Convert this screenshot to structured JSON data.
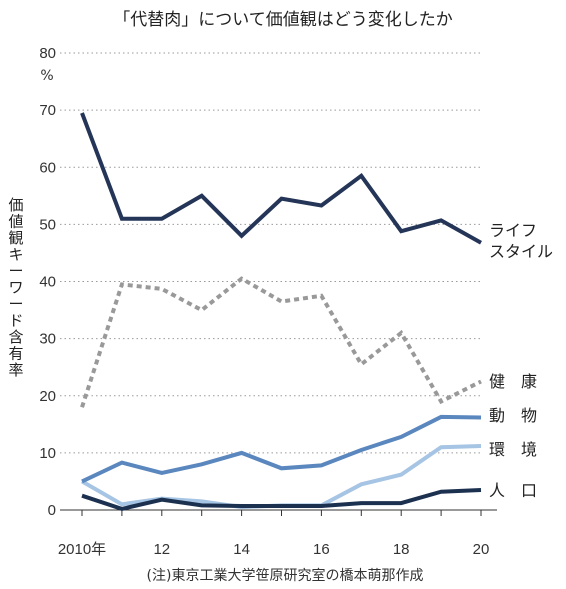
{
  "title": "「代替肉」について価値観はどう変化したか",
  "y_unit": "%",
  "ylabel": "価値観キーワード含有率",
  "source_note": "(注)東京工業大学笹原研究室の橋本萌那作成",
  "colors": {
    "lifestyle": "#243558",
    "health": "#999999",
    "animal": "#5b87bf",
    "environment": "#a6c4e3",
    "population": "#1c3150",
    "grid": "#9a9a9a",
    "axis": "#333333"
  },
  "chart_data": {
    "type": "line",
    "title": "「代替肉」について価値観はどう変化したか",
    "ylabel": "価値観キーワード含有率",
    "y_unit": "%",
    "x": [
      2010,
      2011,
      2012,
      2013,
      2014,
      2015,
      2016,
      2017,
      2018,
      2019,
      2020
    ],
    "x_ticks": [
      2010,
      2012,
      2014,
      2016,
      2018,
      2020
    ],
    "x_tick_labels": [
      "2010年",
      "12",
      "14",
      "16",
      "18",
      "20"
    ],
    "y_ticks": [
      0,
      10,
      20,
      30,
      40,
      50,
      60,
      70,
      80
    ],
    "xlim": [
      2010,
      2020
    ],
    "ylim": [
      0,
      80
    ],
    "grid": true,
    "series": [
      {
        "name_lines": [
          "ライフ",
          "スタイル"
        ],
        "style": "solid",
        "color": "#243558",
        "values": [
          69.5,
          51.0,
          51.0,
          55.0,
          48.0,
          54.5,
          53.3,
          58.5,
          48.8,
          50.7,
          46.8
        ]
      },
      {
        "name_lines": [
          "健　康"
        ],
        "style": "dashed",
        "color": "#999999",
        "values": [
          18.0,
          39.5,
          38.7,
          35.0,
          40.5,
          36.5,
          37.5,
          25.5,
          31.0,
          19.0,
          22.5
        ]
      },
      {
        "name_lines": [
          "動　物"
        ],
        "style": "solid",
        "color": "#5b87bf",
        "values": [
          5.0,
          8.3,
          6.5,
          8.0,
          10.0,
          7.3,
          7.8,
          10.5,
          12.8,
          16.3,
          16.2
        ]
      },
      {
        "name_lines": [
          "環　境"
        ],
        "style": "solid",
        "color": "#a6c4e3",
        "values": [
          5.0,
          1.0,
          2.0,
          1.5,
          0.5,
          0.8,
          0.8,
          4.5,
          6.2,
          11.0,
          11.2
        ]
      },
      {
        "name_lines": [
          "人　口"
        ],
        "style": "solid",
        "color": "#1c3150",
        "values": [
          2.5,
          0.2,
          1.8,
          0.8,
          0.7,
          0.7,
          0.7,
          1.2,
          1.2,
          3.2,
          3.5
        ]
      }
    ]
  }
}
